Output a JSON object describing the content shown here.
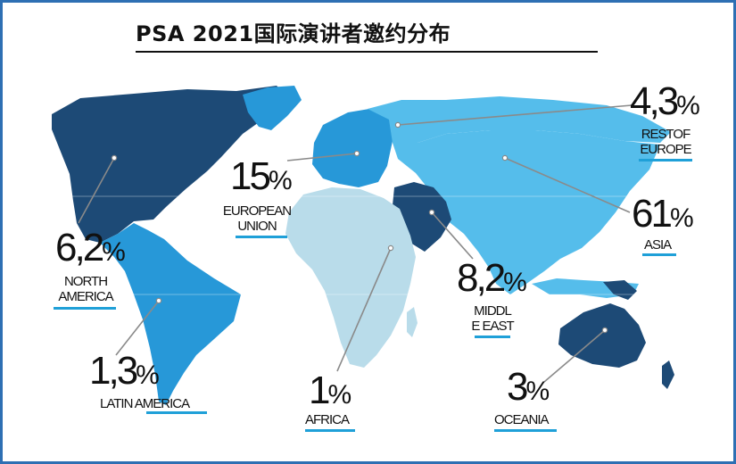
{
  "title": "PSA  2021国际演讲者邀约分布",
  "colors": {
    "frame": "#2e6fb3",
    "dark": "#1d4a76",
    "mid": "#2798d8",
    "light": "#55bdeb",
    "pale": "#b9dcea",
    "underline": "#1fa0d8",
    "leader": "#8a8a8a"
  },
  "chart_data": {
    "type": "map",
    "title": "PSA  2021国际演讲者邀约分布",
    "regions": [
      {
        "id": "north_america",
        "label_lines": [
          "NORTH",
          "AMERICA"
        ],
        "value_text": "6,2",
        "value": 6.2,
        "unit": "%"
      },
      {
        "id": "latin_america",
        "label_lines": [
          "LATIN AMERICA"
        ],
        "value_text": "1,3",
        "value": 1.3,
        "unit": "%"
      },
      {
        "id": "european_union",
        "label_lines": [
          "EUROPEAN",
          "UNION"
        ],
        "value_text": "15",
        "value": 15,
        "unit": "%"
      },
      {
        "id": "africa",
        "label_lines": [
          "AFRICA"
        ],
        "value_text": "1",
        "value": 1,
        "unit": "%"
      },
      {
        "id": "middle_east",
        "label_lines": [
          "MIDDL",
          "E EAST"
        ],
        "value_text": "8,2",
        "value": 8.2,
        "unit": "%"
      },
      {
        "id": "oceania",
        "label_lines": [
          "OCEANIA"
        ],
        "value_text": "3",
        "value": 3,
        "unit": "%"
      },
      {
        "id": "rest_of_europe",
        "label_lines": [
          "RESTOF",
          "EUROPE"
        ],
        "value_text": "4,3",
        "value": 4.3,
        "unit": "%"
      },
      {
        "id": "asia",
        "label_lines": [
          "ASIA"
        ],
        "value_text": "61",
        "value": 61,
        "unit": "%"
      }
    ]
  }
}
